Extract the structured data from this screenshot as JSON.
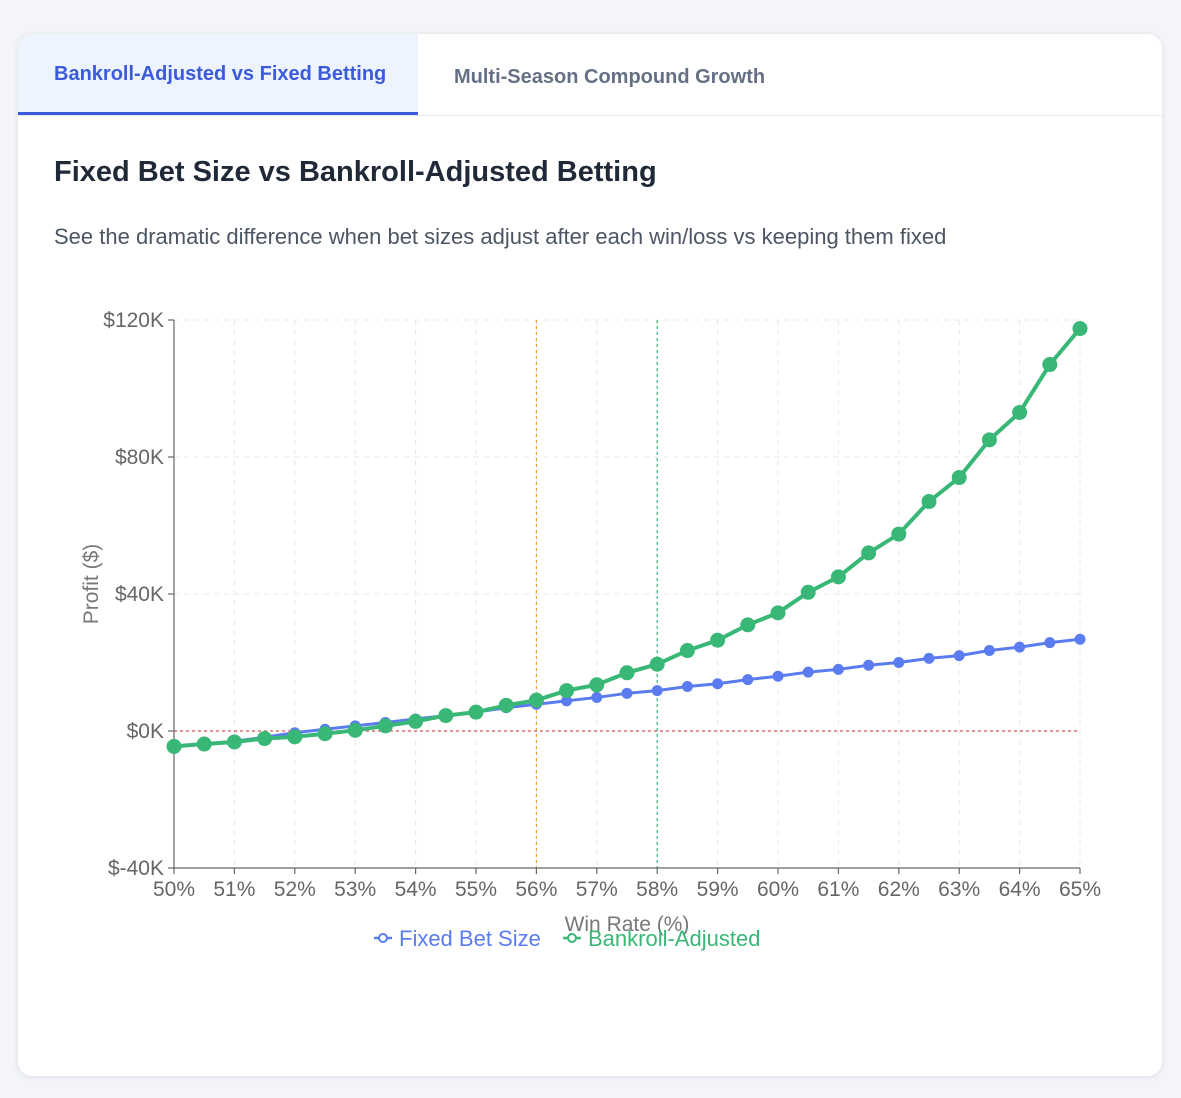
{
  "tabs": [
    {
      "label": "Bankroll-Adjusted vs Fixed Betting",
      "active": true
    },
    {
      "label": "Multi-Season Compound Growth",
      "active": false
    }
  ],
  "section": {
    "title": "Fixed Bet Size vs Bankroll-Adjusted Betting",
    "subtitle": "See the dramatic difference when bet sizes adjust after each win/loss vs keeping them fixed"
  },
  "colors": {
    "fixed": "#5b7cf0",
    "adjusted": "#38b776",
    "zero_line": "#e05252",
    "marker_orange": "#f0a030",
    "marker_green": "#38b776",
    "grid": "#e8e8e8",
    "axis": "#666666"
  },
  "chart_data": {
    "type": "line",
    "xlabel": "Win Rate (%)",
    "ylabel": "Profit ($)",
    "xlim": [
      50,
      65
    ],
    "ylim": [
      -40000,
      120000
    ],
    "x_ticks": [
      50,
      51,
      52,
      53,
      54,
      55,
      56,
      57,
      58,
      59,
      60,
      61,
      62,
      63,
      64,
      65
    ],
    "x_tick_labels": [
      "50%",
      "51%",
      "52%",
      "53%",
      "54%",
      "55%",
      "56%",
      "57%",
      "58%",
      "59%",
      "60%",
      "61%",
      "62%",
      "63%",
      "64%",
      "65%"
    ],
    "y_ticks": [
      -40000,
      0,
      40000,
      80000,
      120000
    ],
    "y_tick_labels": [
      "$-40K",
      "$0K",
      "$40K",
      "$80K",
      "$120K"
    ],
    "grid": true,
    "legend_position": "bottom-center",
    "reference_lines": [
      {
        "axis": "y",
        "value": 0,
        "style": "dashed",
        "color": "red"
      },
      {
        "axis": "x",
        "value": 56,
        "style": "dashed",
        "color": "orange"
      },
      {
        "axis": "x",
        "value": 58,
        "style": "dashed",
        "color": "green"
      }
    ],
    "x": [
      50,
      50.5,
      51,
      51.5,
      52,
      52.5,
      53,
      53.5,
      54,
      54.5,
      55,
      55.5,
      56,
      56.5,
      57,
      57.5,
      58,
      58.5,
      59,
      59.5,
      60,
      60.5,
      61,
      61.5,
      62,
      62.5,
      63,
      63.5,
      64,
      64.5,
      65
    ],
    "series": [
      {
        "name": "Fixed Bet Size",
        "values": [
          -4500,
          -3800,
          -3000,
          -1800,
          -500,
          500,
          1500,
          2500,
          3500,
          4500,
          5500,
          6800,
          7800,
          8800,
          9800,
          11000,
          11800,
          13000,
          13800,
          15000,
          16000,
          17200,
          18000,
          19200,
          20000,
          21200,
          22000,
          23500,
          24500,
          25800,
          26800
        ]
      },
      {
        "name": "Bankroll-Adjusted",
        "values": [
          -4500,
          -3800,
          -3200,
          -2200,
          -1700,
          -800,
          200,
          1500,
          2800,
          4500,
          5500,
          7500,
          9000,
          11800,
          13500,
          17000,
          19500,
          23500,
          26500,
          31000,
          34500,
          40500,
          45000,
          52000,
          57500,
          67000,
          74000,
          85000,
          93000,
          107000,
          117500
        ]
      }
    ]
  }
}
